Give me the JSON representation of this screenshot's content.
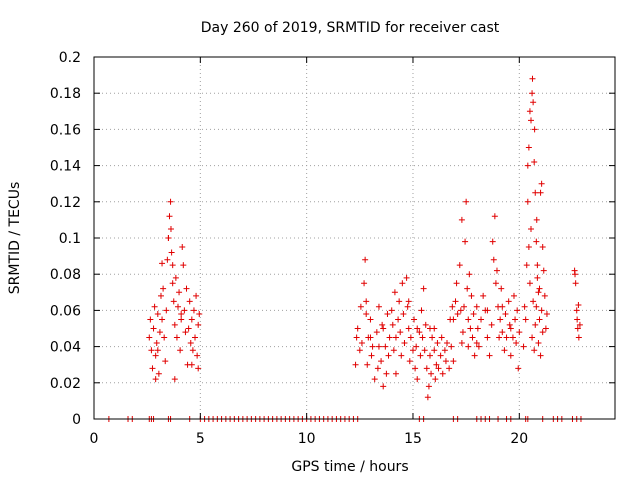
{
  "chart_data": {
    "type": "scatter",
    "title": "Day 260 of 2019, SRMTID for receiver cast",
    "xlabel": "GPS time / hours",
    "ylabel": "SRMTID / TECUs",
    "xlim": [
      0,
      24.5
    ],
    "ylim": [
      0,
      0.2
    ],
    "xticks": [
      0,
      5,
      10,
      15,
      20
    ],
    "yticks": [
      0,
      0.02,
      0.04,
      0.06,
      0.08,
      0.1,
      0.12,
      0.14,
      0.16,
      0.18,
      0.2
    ],
    "xtick_labels": [
      "0",
      "5",
      "10",
      "15",
      "20"
    ],
    "ytick_labels": [
      "0",
      "0.02",
      "0.04",
      "0.06",
      "0.08",
      "0.1",
      "0.12",
      "0.14",
      "0.16",
      "0.18",
      "0.2"
    ],
    "grid": true,
    "marker": "+",
    "color": "#e00000",
    "series": [
      {
        "name": "SRMTID",
        "points": [
          [
            0.7,
            0
          ],
          [
            1.6,
            0
          ],
          [
            1.8,
            0
          ],
          [
            2.6,
            0
          ],
          [
            2.7,
            0
          ],
          [
            2.8,
            0
          ],
          [
            3.5,
            0
          ],
          [
            3.6,
            0
          ],
          [
            4.5,
            0
          ],
          [
            5.0,
            0
          ],
          [
            5.2,
            0
          ],
          [
            5.4,
            0
          ],
          [
            5.6,
            0
          ],
          [
            5.8,
            0
          ],
          [
            6.0,
            0
          ],
          [
            6.2,
            0
          ],
          [
            6.4,
            0
          ],
          [
            6.6,
            0
          ],
          [
            6.8,
            0
          ],
          [
            7.0,
            0
          ],
          [
            7.2,
            0
          ],
          [
            7.4,
            0
          ],
          [
            7.6,
            0
          ],
          [
            7.8,
            0
          ],
          [
            8.0,
            0
          ],
          [
            8.2,
            0
          ],
          [
            8.4,
            0
          ],
          [
            8.6,
            0
          ],
          [
            8.8,
            0
          ],
          [
            9.0,
            0
          ],
          [
            9.2,
            0
          ],
          [
            9.4,
            0
          ],
          [
            9.6,
            0
          ],
          [
            9.8,
            0
          ],
          [
            10.0,
            0
          ],
          [
            10.2,
            0
          ],
          [
            10.4,
            0
          ],
          [
            10.6,
            0
          ],
          [
            10.8,
            0
          ],
          [
            11.0,
            0
          ],
          [
            11.2,
            0
          ],
          [
            11.4,
            0
          ],
          [
            11.6,
            0
          ],
          [
            11.8,
            0
          ],
          [
            12.0,
            0
          ],
          [
            12.2,
            0
          ],
          [
            12.4,
            0
          ],
          [
            15.3,
            0
          ],
          [
            15.5,
            0
          ],
          [
            16.9,
            0
          ],
          [
            17.1,
            0
          ],
          [
            18.0,
            0
          ],
          [
            18.2,
            0
          ],
          [
            18.4,
            0
          ],
          [
            18.6,
            0
          ],
          [
            19.0,
            0
          ],
          [
            19.4,
            0
          ],
          [
            19.6,
            0
          ],
          [
            20.3,
            0
          ],
          [
            20.4,
            0
          ],
          [
            21.1,
            0
          ],
          [
            21.6,
            0
          ],
          [
            21.8,
            0
          ],
          [
            22.0,
            0
          ],
          [
            22.5,
            0
          ],
          [
            22.7,
            0
          ],
          [
            22.9,
            0
          ],
          [
            2.6,
            0.045
          ],
          [
            2.65,
            0.055
          ],
          [
            2.7,
            0.038
          ],
          [
            2.75,
            0.028
          ],
          [
            2.8,
            0.05
          ],
          [
            2.85,
            0.062
          ],
          [
            2.9,
            0.035
          ],
          [
            2.95,
            0.042
          ],
          [
            3.0,
            0.058
          ],
          [
            3.05,
            0.025
          ],
          [
            3.1,
            0.048
          ],
          [
            3.15,
            0.068
          ],
          [
            3.2,
            0.055
          ],
          [
            3.25,
            0.072
          ],
          [
            3.3,
            0.045
          ],
          [
            3.35,
            0.032
          ],
          [
            3.4,
            0.06
          ],
          [
            3.45,
            0.088
          ],
          [
            3.5,
            0.1
          ],
          [
            3.55,
            0.112
          ],
          [
            3.6,
            0.12
          ],
          [
            3.62,
            0.105
          ],
          [
            3.65,
            0.092
          ],
          [
            3.7,
            0.075
          ],
          [
            3.75,
            0.065
          ],
          [
            3.8,
            0.052
          ],
          [
            3.85,
            0.078
          ],
          [
            3.9,
            0.045
          ],
          [
            3.95,
            0.062
          ],
          [
            4.0,
            0.07
          ],
          [
            4.05,
            0.038
          ],
          [
            4.1,
            0.055
          ],
          [
            4.15,
            0.095
          ],
          [
            4.2,
            0.085
          ],
          [
            4.25,
            0.06
          ],
          [
            4.3,
            0.048
          ],
          [
            4.35,
            0.072
          ],
          [
            4.4,
            0.03
          ],
          [
            4.45,
            0.05
          ],
          [
            4.5,
            0.065
          ],
          [
            4.55,
            0.042
          ],
          [
            4.6,
            0.055
          ],
          [
            4.65,
            0.038
          ],
          [
            4.7,
            0.06
          ],
          [
            4.75,
            0.045
          ],
          [
            4.8,
            0.068
          ],
          [
            4.85,
            0.035
          ],
          [
            4.9,
            0.052
          ],
          [
            4.95,
            0.058
          ],
          [
            3.2,
            0.086
          ],
          [
            3.5,
            0.1
          ],
          [
            3.7,
            0.085
          ],
          [
            4.1,
            0.058
          ],
          [
            3.0,
            0.038
          ],
          [
            2.9,
            0.022
          ],
          [
            3.8,
            0.022
          ],
          [
            4.6,
            0.03
          ],
          [
            4.9,
            0.028
          ],
          [
            12.3,
            0.03
          ],
          [
            12.35,
            0.045
          ],
          [
            12.4,
            0.05
          ],
          [
            12.5,
            0.038
          ],
          [
            12.55,
            0.062
          ],
          [
            12.6,
            0.042
          ],
          [
            12.7,
            0.075
          ],
          [
            12.75,
            0.088
          ],
          [
            12.8,
            0.058
          ],
          [
            12.85,
            0.03
          ],
          [
            12.9,
            0.045
          ],
          [
            13.0,
            0.055
          ],
          [
            13.05,
            0.035
          ],
          [
            13.1,
            0.04
          ],
          [
            13.2,
            0.022
          ],
          [
            13.3,
            0.048
          ],
          [
            13.35,
            0.028
          ],
          [
            13.4,
            0.062
          ],
          [
            13.5,
            0.032
          ],
          [
            13.55,
            0.052
          ],
          [
            13.6,
            0.018
          ],
          [
            13.7,
            0.04
          ],
          [
            13.75,
            0.025
          ],
          [
            13.8,
            0.058
          ],
          [
            13.85,
            0.035
          ],
          [
            13.9,
            0.045
          ],
          [
            14.0,
            0.06
          ],
          [
            14.05,
            0.052
          ],
          [
            14.1,
            0.038
          ],
          [
            14.15,
            0.07
          ],
          [
            14.2,
            0.045
          ],
          [
            14.3,
            0.055
          ],
          [
            14.35,
            0.065
          ],
          [
            14.4,
            0.048
          ],
          [
            14.45,
            0.035
          ],
          [
            14.5,
            0.075
          ],
          [
            14.55,
            0.058
          ],
          [
            14.6,
            0.042
          ],
          [
            14.7,
            0.078
          ],
          [
            14.75,
            0.062
          ],
          [
            14.8,
            0.05
          ],
          [
            14.85,
            0.032
          ],
          [
            14.9,
            0.045
          ],
          [
            15.0,
            0.038
          ],
          [
            15.05,
            0.055
          ],
          [
            15.1,
            0.028
          ],
          [
            15.15,
            0.04
          ],
          [
            15.2,
            0.022
          ],
          [
            15.3,
            0.048
          ],
          [
            15.35,
            0.035
          ],
          [
            15.4,
            0.06
          ],
          [
            15.45,
            0.045
          ],
          [
            15.5,
            0.072
          ],
          [
            15.55,
            0.038
          ],
          [
            15.6,
            0.052
          ],
          [
            15.65,
            0.028
          ],
          [
            15.7,
            0.012
          ],
          [
            15.75,
            0.018
          ],
          [
            15.8,
            0.035
          ],
          [
            15.85,
            0.025
          ],
          [
            15.9,
            0.045
          ],
          [
            16.0,
            0.038
          ],
          [
            16.05,
            0.022
          ],
          [
            16.1,
            0.03
          ],
          [
            16.15,
            0.042
          ],
          [
            16.2,
            0.028
          ],
          [
            16.3,
            0.035
          ],
          [
            16.35,
            0.045
          ],
          [
            16.4,
            0.025
          ],
          [
            16.5,
            0.038
          ],
          [
            16.55,
            0.032
          ],
          [
            16.6,
            0.042
          ],
          [
            16.7,
            0.028
          ],
          [
            16.75,
            0.055
          ],
          [
            16.8,
            0.04
          ],
          [
            16.85,
            0.062
          ],
          [
            16.9,
            0.032
          ],
          [
            13.0,
            0.045
          ],
          [
            13.6,
            0.05
          ],
          [
            14.2,
            0.025
          ],
          [
            14.8,
            0.065
          ],
          [
            15.2,
            0.05
          ],
          [
            15.8,
            0.05
          ],
          [
            12.8,
            0.065
          ],
          [
            13.4,
            0.04
          ],
          [
            16.0,
            0.05
          ],
          [
            16.9,
            0.055
          ],
          [
            17.0,
            0.065
          ],
          [
            17.05,
            0.075
          ],
          [
            17.1,
            0.058
          ],
          [
            17.2,
            0.085
          ],
          [
            17.25,
            0.06
          ],
          [
            17.3,
            0.11
          ],
          [
            17.35,
            0.048
          ],
          [
            17.4,
            0.062
          ],
          [
            17.45,
            0.098
          ],
          [
            17.5,
            0.12
          ],
          [
            17.55,
            0.072
          ],
          [
            17.6,
            0.055
          ],
          [
            17.65,
            0.08
          ],
          [
            17.7,
            0.05
          ],
          [
            17.75,
            0.068
          ],
          [
            17.8,
            0.045
          ],
          [
            17.85,
            0.058
          ],
          [
            17.9,
            0.035
          ],
          [
            18.0,
            0.062
          ],
          [
            18.05,
            0.05
          ],
          [
            18.1,
            0.04
          ],
          [
            18.2,
            0.055
          ],
          [
            18.3,
            0.068
          ],
          [
            18.4,
            0.06
          ],
          [
            18.5,
            0.045
          ],
          [
            18.6,
            0.035
          ],
          [
            18.7,
            0.052
          ],
          [
            18.75,
            0.098
          ],
          [
            18.8,
            0.088
          ],
          [
            18.85,
            0.112
          ],
          [
            18.9,
            0.075
          ],
          [
            18.95,
            0.082
          ],
          [
            19.0,
            0.062
          ],
          [
            19.05,
            0.045
          ],
          [
            19.1,
            0.055
          ],
          [
            19.15,
            0.072
          ],
          [
            19.2,
            0.048
          ],
          [
            19.3,
            0.038
          ],
          [
            19.35,
            0.058
          ],
          [
            19.4,
            0.045
          ],
          [
            19.5,
            0.065
          ],
          [
            19.55,
            0.052
          ],
          [
            19.6,
            0.035
          ],
          [
            19.7,
            0.045
          ],
          [
            19.75,
            0.068
          ],
          [
            19.8,
            0.055
          ],
          [
            19.85,
            0.042
          ],
          [
            19.9,
            0.06
          ],
          [
            19.95,
            0.028
          ],
          [
            20.0,
            0.048
          ],
          [
            17.6,
            0.04
          ],
          [
            18.5,
            0.06
          ],
          [
            19.2,
            0.062
          ],
          [
            19.6,
            0.05
          ],
          [
            18.0,
            0.042
          ],
          [
            17.3,
            0.042
          ],
          [
            20.2,
            0.04
          ],
          [
            20.25,
            0.062
          ],
          [
            20.3,
            0.055
          ],
          [
            20.35,
            0.085
          ],
          [
            20.4,
            0.12
          ],
          [
            20.45,
            0.15
          ],
          [
            20.5,
            0.17
          ],
          [
            20.55,
            0.165
          ],
          [
            20.6,
            0.18
          ],
          [
            20.62,
            0.188
          ],
          [
            20.65,
            0.175
          ],
          [
            20.7,
            0.142
          ],
          [
            20.72,
            0.16
          ],
          [
            20.75,
            0.125
          ],
          [
            20.8,
            0.098
          ],
          [
            20.82,
            0.11
          ],
          [
            20.85,
            0.085
          ],
          [
            20.9,
            0.07
          ],
          [
            20.95,
            0.055
          ],
          [
            21.0,
            0.125
          ],
          [
            21.05,
            0.13
          ],
          [
            21.1,
            0.095
          ],
          [
            21.15,
            0.082
          ],
          [
            21.2,
            0.068
          ],
          [
            21.25,
            0.05
          ],
          [
            21.3,
            0.058
          ],
          [
            20.6,
            0.045
          ],
          [
            20.7,
            0.038
          ],
          [
            20.8,
            0.062
          ],
          [
            20.9,
            0.042
          ],
          [
            21.0,
            0.035
          ],
          [
            21.1,
            0.048
          ],
          [
            20.5,
            0.075
          ],
          [
            20.65,
            0.065
          ],
          [
            20.75,
            0.052
          ],
          [
            20.85,
            0.078
          ],
          [
            20.95,
            0.072
          ],
          [
            21.05,
            0.06
          ],
          [
            20.4,
            0.14
          ],
          [
            20.55,
            0.105
          ],
          [
            20.45,
            0.095
          ],
          [
            22.6,
            0.082
          ],
          [
            22.65,
            0.075
          ],
          [
            22.7,
            0.06
          ],
          [
            22.72,
            0.055
          ],
          [
            22.75,
            0.05
          ],
          [
            22.8,
            0.045
          ],
          [
            22.85,
            0.052
          ],
          [
            22.62,
            0.08
          ],
          [
            22.78,
            0.063
          ]
        ]
      }
    ]
  }
}
